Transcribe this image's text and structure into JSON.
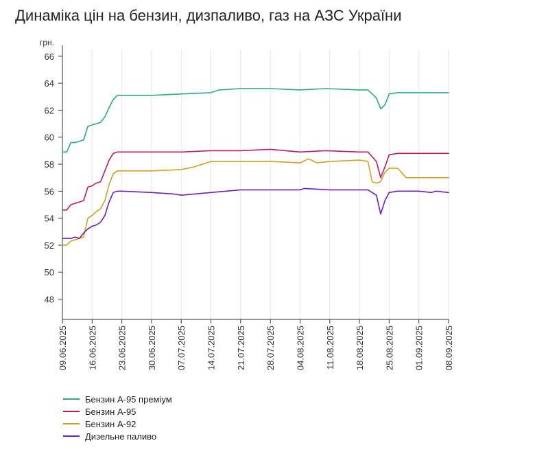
{
  "chart_data": {
    "type": "line",
    "title": "Динаміка цін на бензин, дизпаливо, газ на АЗС України",
    "ylabel": "грн.",
    "xlabel": "",
    "ylim": [
      46.5,
      66.5
    ],
    "yticks": [
      48,
      50,
      52,
      54,
      56,
      58,
      60,
      62,
      64,
      66
    ],
    "grid": "vertical",
    "legend_position": "bottom-left",
    "x_start": "09.06.2025",
    "x_end": "08.09.2025",
    "xtick_labels": [
      "09.06.2025",
      "16.06.2025",
      "23.06.2025",
      "30.06.2025",
      "07.07.2025",
      "14.07.2025",
      "21.07.2025",
      "28.07.2025",
      "04.08.2025",
      "11.08.2025",
      "18.08.2025",
      "25.08.2025",
      "01.09.2025",
      "08.09.2025"
    ],
    "series": [
      {
        "name": "Бензин А-95 преміум",
        "color": "#2aa889",
        "x": [
          "09.06.2025",
          "10.06.2025",
          "11.06.2025",
          "12.06.2025",
          "14.06.2025",
          "15.06.2025",
          "16.06.2025",
          "17.06.2025",
          "18.06.2025",
          "19.06.2025",
          "20.06.2025",
          "21.06.2025",
          "22.06.2025",
          "23.06.2025",
          "24.06.2025",
          "30.06.2025",
          "07.07.2025",
          "14.07.2025",
          "16.07.2025",
          "21.07.2025",
          "28.07.2025",
          "04.08.2025",
          "10.08.2025",
          "18.08.2025",
          "20.08.2025",
          "22.08.2025",
          "23.08.2025",
          "24.08.2025",
          "25.08.2025",
          "27.08.2025",
          "01.09.2025",
          "08.09.2025"
        ],
        "values": [
          58.9,
          58.9,
          59.6,
          59.6,
          59.8,
          60.8,
          60.9,
          61.0,
          61.1,
          61.5,
          62.2,
          62.8,
          63.1,
          63.1,
          63.1,
          63.1,
          63.2,
          63.3,
          63.5,
          63.6,
          63.6,
          63.5,
          63.6,
          63.5,
          63.5,
          62.9,
          62.1,
          62.4,
          63.2,
          63.3,
          63.3,
          63.3
        ]
      },
      {
        "name": "Бензин А-95",
        "color": "#c2185b",
        "x": [
          "09.06.2025",
          "10.06.2025",
          "11.06.2025",
          "12.06.2025",
          "14.06.2025",
          "15.06.2025",
          "16.06.2025",
          "17.06.2025",
          "18.06.2025",
          "19.06.2025",
          "20.06.2025",
          "21.06.2025",
          "22.06.2025",
          "23.06.2025",
          "30.06.2025",
          "07.07.2025",
          "14.07.2025",
          "21.07.2025",
          "28.07.2025",
          "04.08.2025",
          "10.08.2025",
          "18.08.2025",
          "20.08.2025",
          "22.08.2025",
          "23.08.2025",
          "24.08.2025",
          "25.08.2025",
          "27.08.2025",
          "01.09.2025",
          "04.09.2025",
          "08.09.2025"
        ],
        "values": [
          54.6,
          54.6,
          55.0,
          55.1,
          55.3,
          56.3,
          56.4,
          56.6,
          56.7,
          57.5,
          58.3,
          58.8,
          58.9,
          58.9,
          58.9,
          58.9,
          59.0,
          59.0,
          59.1,
          58.9,
          59.0,
          58.9,
          58.9,
          58.2,
          57.0,
          57.8,
          58.7,
          58.8,
          58.8,
          58.8,
          58.8
        ]
      },
      {
        "name": "Бензин А-92",
        "color": "#c9a227",
        "x": [
          "09.06.2025",
          "10.06.2025",
          "11.06.2025",
          "12.06.2025",
          "14.06.2025",
          "15.06.2025",
          "16.06.2025",
          "17.06.2025",
          "18.06.2025",
          "19.06.2025",
          "20.06.2025",
          "21.06.2025",
          "22.06.2025",
          "23.06.2025",
          "30.06.2025",
          "07.07.2025",
          "10.07.2025",
          "14.07.2025",
          "21.07.2025",
          "28.07.2025",
          "04.08.2025",
          "06.08.2025",
          "08.08.2025",
          "11.08.2025",
          "18.08.2025",
          "20.08.2025",
          "21.08.2025",
          "22.08.2025",
          "23.08.2025",
          "24.08.2025",
          "25.08.2025",
          "27.08.2025",
          "29.08.2025",
          "01.09.2025",
          "08.09.2025"
        ],
        "values": [
          52.0,
          52.0,
          52.3,
          52.4,
          52.6,
          54.0,
          54.2,
          54.5,
          54.7,
          55.3,
          56.5,
          57.3,
          57.5,
          57.5,
          57.5,
          57.6,
          57.8,
          58.2,
          58.2,
          58.2,
          58.1,
          58.4,
          58.1,
          58.2,
          58.3,
          58.2,
          56.7,
          56.6,
          56.7,
          57.4,
          57.7,
          57.7,
          57.0,
          57.0,
          57.0
        ]
      },
      {
        "name": "Дизельне паливо",
        "color": "#6a1fb5",
        "x": [
          "09.06.2025",
          "10.06.2025",
          "11.06.2025",
          "12.06.2025",
          "13.06.2025",
          "14.06.2025",
          "15.06.2025",
          "16.06.2025",
          "17.06.2025",
          "18.06.2025",
          "19.06.2025",
          "20.06.2025",
          "21.06.2025",
          "22.06.2025",
          "23.06.2025",
          "30.06.2025",
          "05.07.2025",
          "07.07.2025",
          "14.07.2025",
          "21.07.2025",
          "28.07.2025",
          "04.08.2025",
          "05.08.2025",
          "11.08.2025",
          "18.08.2025",
          "20.08.2025",
          "22.08.2025",
          "23.08.2025",
          "24.08.2025",
          "25.08.2025",
          "27.08.2025",
          "01.09.2025",
          "04.09.2025",
          "05.09.2025",
          "08.09.2025"
        ],
        "values": [
          52.5,
          52.5,
          52.5,
          52.6,
          52.5,
          52.9,
          53.2,
          53.4,
          53.5,
          53.7,
          54.2,
          55.2,
          55.9,
          56.0,
          56.0,
          55.9,
          55.8,
          55.7,
          55.9,
          56.1,
          56.1,
          56.1,
          56.2,
          56.1,
          56.1,
          56.1,
          55.7,
          54.3,
          55.3,
          55.9,
          56.0,
          56.0,
          55.9,
          56.0,
          55.9
        ]
      }
    ]
  }
}
